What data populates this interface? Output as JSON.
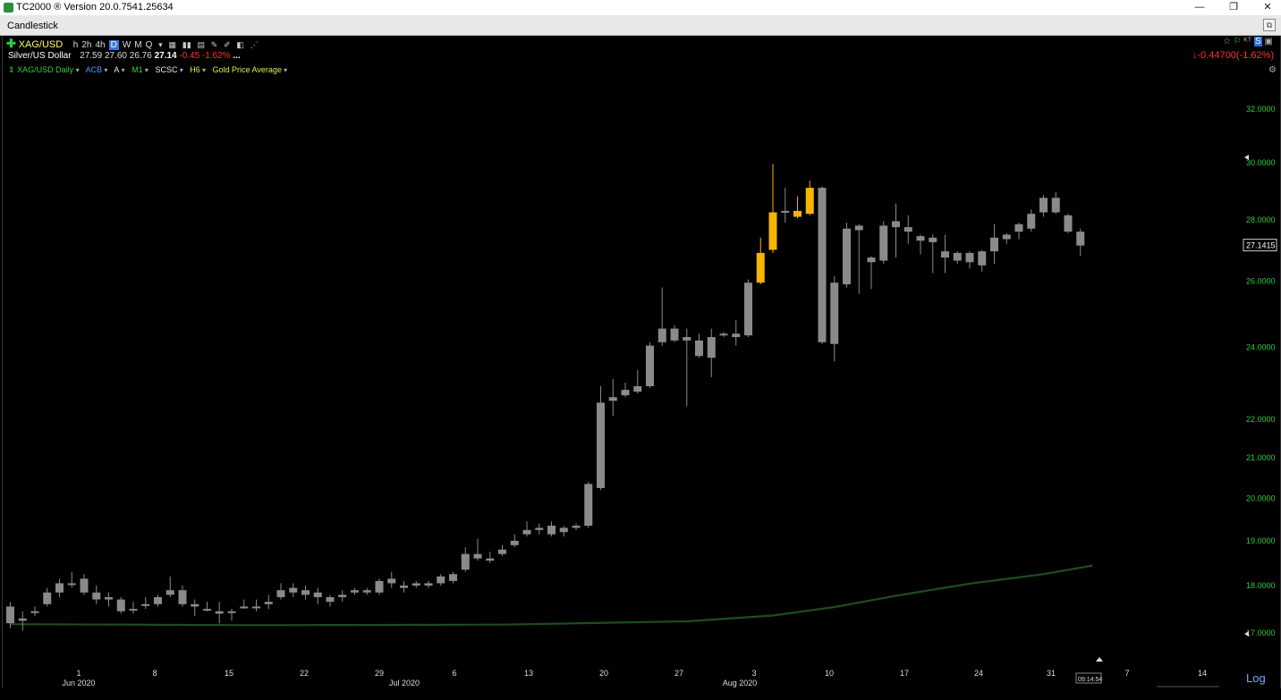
{
  "app": {
    "title": "TC2000 ® Version 20.0.7541.25634",
    "minimize": "—",
    "maximize": "❐",
    "close": "✕"
  },
  "document": {
    "title": "Candlestick"
  },
  "toolbar": {
    "symbol": "XAG/USD",
    "timeframes": [
      "h",
      "2h",
      "4h",
      "D",
      "W",
      "M",
      "Q"
    ],
    "active_timeframe": "D",
    "icons": [
      "drawing-tools-icon",
      "bar-style-icon",
      "watchlist-icon",
      "pencil-icon",
      "pencil-alt-icon",
      "layout-icon",
      "share-icon"
    ]
  },
  "quote": {
    "name": "Silver/US Dollar",
    "open": "27.59",
    "high": "27.60",
    "low": "26.76",
    "last": "27.14",
    "change": "-0.45",
    "change_pct": "-1.62%",
    "more": "...",
    "right_change": "-0.44700(-1.62%)"
  },
  "indicators": {
    "main": "XAG/USD Daily",
    "items": [
      "ACB",
      "A",
      "M1",
      "SCSC",
      "H6",
      "Gold Price Average"
    ]
  },
  "chart_data": {
    "type": "candlestick",
    "y_scale": "log",
    "ylim": [
      16.6,
      33.2
    ],
    "y_ticks": [
      "32.0000",
      "30.0000",
      "28.0000",
      "26.0000",
      "24.0000",
      "22.0000",
      "21.0000",
      "20.0000",
      "19.0000",
      "18.0000",
      "17.0000"
    ],
    "last_price_label": "27.1415",
    "scale_label": "Log",
    "time_label": "09:14:54",
    "x_tick_labels": [
      "1",
      "8",
      "15",
      "22",
      "29",
      "6",
      "13",
      "20",
      "27",
      "3",
      "10",
      "17",
      "24",
      "31",
      "7",
      "14"
    ],
    "x_month_labels": [
      "Jun 2020",
      "Jul 2020",
      "Aug 2020"
    ],
    "candles": [
      [
        17.55,
        17.65,
        17.1,
        17.2,
        0
      ],
      [
        17.3,
        17.45,
        17.05,
        17.25,
        0
      ],
      [
        17.45,
        17.55,
        17.35,
        17.45,
        0
      ],
      [
        17.85,
        17.95,
        17.55,
        17.6,
        0
      ],
      [
        18.05,
        18.15,
        17.75,
        17.85,
        0
      ],
      [
        18.05,
        18.3,
        17.95,
        18.15,
        0
      ],
      [
        18.15,
        18.25,
        17.8,
        17.85,
        0
      ],
      [
        17.85,
        18.0,
        17.6,
        17.7,
        0
      ],
      [
        17.75,
        17.85,
        17.55,
        17.7,
        0
      ],
      [
        17.7,
        17.75,
        17.4,
        17.45,
        0
      ],
      [
        17.5,
        17.65,
        17.4,
        17.55,
        0
      ],
      [
        17.6,
        17.75,
        17.5,
        17.65,
        0
      ],
      [
        17.75,
        17.8,
        17.55,
        17.6,
        0
      ],
      [
        17.9,
        18.2,
        17.75,
        17.8,
        0
      ],
      [
        17.9,
        18.0,
        17.55,
        17.6,
        0
      ],
      [
        17.6,
        17.7,
        17.35,
        17.55,
        0
      ],
      [
        17.5,
        17.65,
        17.45,
        17.55,
        0
      ],
      [
        17.45,
        17.65,
        17.2,
        17.4,
        0
      ],
      [
        17.45,
        17.5,
        17.25,
        17.45,
        0
      ],
      [
        17.55,
        17.7,
        17.5,
        17.6,
        0
      ],
      [
        17.55,
        17.7,
        17.45,
        17.65,
        0
      ],
      [
        17.65,
        17.8,
        17.5,
        17.6,
        0
      ],
      [
        17.9,
        18.05,
        17.7,
        17.75,
        0
      ],
      [
        17.95,
        18.05,
        17.75,
        17.85,
        0
      ],
      [
        17.9,
        18.0,
        17.7,
        17.8,
        0
      ],
      [
        17.85,
        17.95,
        17.6,
        17.75,
        0
      ],
      [
        17.75,
        17.8,
        17.55,
        17.65,
        0
      ],
      [
        17.8,
        17.9,
        17.65,
        17.75,
        0
      ],
      [
        17.9,
        17.95,
        17.8,
        17.85,
        0
      ],
      [
        17.9,
        17.95,
        17.8,
        17.85,
        0
      ],
      [
        18.1,
        18.15,
        17.8,
        17.85,
        0
      ],
      [
        18.15,
        18.3,
        17.95,
        18.05,
        0
      ],
      [
        18.0,
        18.1,
        17.85,
        17.95,
        0
      ],
      [
        18.05,
        18.1,
        17.95,
        18.0,
        0
      ],
      [
        18.05,
        18.1,
        17.95,
        18.0,
        0
      ],
      [
        18.2,
        18.25,
        18.0,
        18.05,
        0
      ],
      [
        18.25,
        18.3,
        18.05,
        18.1,
        0
      ],
      [
        18.7,
        18.85,
        18.3,
        18.35,
        0
      ],
      [
        18.7,
        19.05,
        18.55,
        18.6,
        0
      ],
      [
        18.6,
        18.75,
        18.5,
        18.55,
        0
      ],
      [
        18.8,
        18.9,
        18.65,
        18.7,
        0
      ],
      [
        19.0,
        19.15,
        18.85,
        18.9,
        0
      ],
      [
        19.25,
        19.45,
        19.1,
        19.15,
        0
      ],
      [
        19.3,
        19.4,
        19.15,
        19.25,
        0
      ],
      [
        19.35,
        19.45,
        19.1,
        19.15,
        0
      ],
      [
        19.3,
        19.35,
        19.1,
        19.2,
        0
      ],
      [
        19.35,
        19.4,
        19.25,
        19.3,
        0
      ],
      [
        20.35,
        20.4,
        19.3,
        19.35,
        0
      ],
      [
        22.45,
        22.9,
        20.2,
        20.25,
        0
      ],
      [
        22.6,
        23.1,
        22.1,
        22.5,
        0
      ],
      [
        22.8,
        23.0,
        22.6,
        22.65,
        0
      ],
      [
        22.9,
        23.35,
        22.7,
        22.75,
        0
      ],
      [
        24.05,
        24.15,
        22.85,
        22.9,
        0
      ],
      [
        24.55,
        25.8,
        24.05,
        24.15,
        0
      ],
      [
        24.55,
        24.65,
        24.15,
        24.2,
        0
      ],
      [
        24.3,
        24.55,
        22.35,
        24.2,
        0
      ],
      [
        24.2,
        24.4,
        23.7,
        23.75,
        0
      ],
      [
        24.3,
        24.55,
        23.15,
        23.7,
        0
      ],
      [
        24.4,
        24.45,
        24.3,
        24.35,
        0
      ],
      [
        24.4,
        24.8,
        24.05,
        24.3,
        0
      ],
      [
        25.95,
        26.05,
        24.3,
        24.35,
        0
      ],
      [
        26.9,
        27.4,
        25.9,
        25.95,
        1
      ],
      [
        28.25,
        29.95,
        26.9,
        27.0,
        1
      ],
      [
        28.3,
        29.1,
        27.9,
        28.25,
        0
      ],
      [
        28.3,
        28.8,
        28.05,
        28.1,
        1
      ],
      [
        29.1,
        29.35,
        28.15,
        28.2,
        1
      ],
      [
        29.1,
        29.15,
        24.1,
        24.15,
        0
      ],
      [
        25.95,
        26.15,
        23.6,
        24.1,
        0
      ],
      [
        27.7,
        27.9,
        25.8,
        25.9,
        0
      ],
      [
        27.8,
        27.85,
        25.6,
        27.65,
        0
      ],
      [
        26.75,
        26.8,
        25.75,
        26.6,
        0
      ],
      [
        27.8,
        27.95,
        26.55,
        26.65,
        0
      ],
      [
        27.95,
        28.55,
        26.75,
        27.75,
        0
      ],
      [
        27.75,
        28.15,
        27.2,
        27.6,
        0
      ],
      [
        27.45,
        27.5,
        26.85,
        27.3,
        0
      ],
      [
        27.4,
        27.5,
        26.25,
        27.25,
        0
      ],
      [
        26.95,
        27.5,
        26.25,
        26.75,
        0
      ],
      [
        26.9,
        26.95,
        26.55,
        26.65,
        0
      ],
      [
        26.9,
        26.95,
        26.4,
        26.6,
        0
      ],
      [
        26.95,
        27.0,
        26.3,
        26.5,
        0
      ],
      [
        27.4,
        27.85,
        26.55,
        26.95,
        0
      ],
      [
        27.5,
        27.55,
        27.2,
        27.35,
        0
      ],
      [
        27.85,
        27.9,
        27.35,
        27.6,
        0
      ],
      [
        28.2,
        28.35,
        27.6,
        27.7,
        0
      ],
      [
        28.75,
        28.85,
        28.1,
        28.25,
        0
      ],
      [
        28.75,
        28.95,
        28.2,
        28.25,
        0
      ],
      [
        28.15,
        28.2,
        27.55,
        27.6,
        0
      ],
      [
        27.6,
        27.7,
        26.8,
        27.14,
        0
      ]
    ],
    "moving_average": [
      [
        0,
        17.18
      ],
      [
        20,
        17.16
      ],
      [
        40,
        17.17
      ],
      [
        55,
        17.24
      ],
      [
        62,
        17.36
      ],
      [
        67,
        17.54
      ],
      [
        72,
        17.78
      ],
      [
        78,
        18.04
      ],
      [
        84,
        18.25
      ],
      [
        88,
        18.44
      ]
    ]
  }
}
